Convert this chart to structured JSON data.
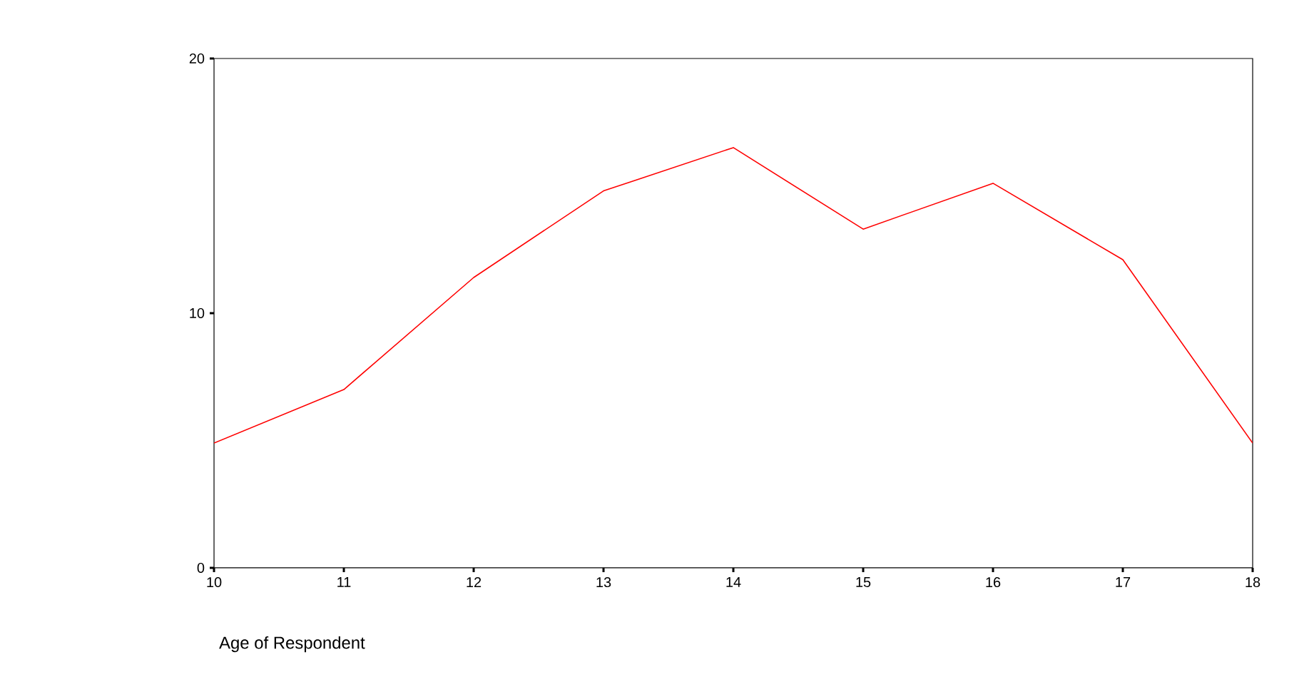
{
  "chart_data": {
    "type": "line",
    "xlabel": "Age of Respondent",
    "x": [
      10,
      11,
      12,
      13,
      14,
      15,
      16,
      17,
      18
    ],
    "series": [
      {
        "color": "#ff0000",
        "values": [
          4.9,
          7.0,
          11.4,
          14.8,
          16.5,
          13.3,
          15.1,
          12.1,
          4.9
        ]
      }
    ],
    "xlim": [
      10,
      18
    ],
    "xticks": [
      10,
      11,
      12,
      13,
      14,
      15,
      16,
      17,
      18
    ],
    "ylim": [
      0,
      20
    ],
    "yticks": [
      0,
      10,
      20
    ],
    "grid": false,
    "marker": "none",
    "line_style": "solid"
  }
}
